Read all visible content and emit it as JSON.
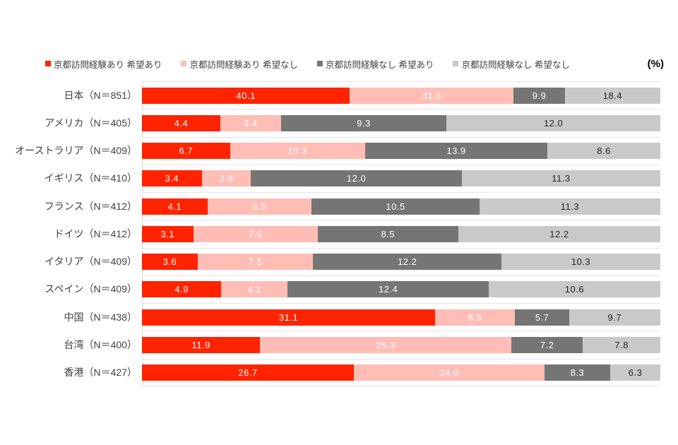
{
  "legend": {
    "unit_label": "(%)",
    "items": [
      {
        "label": "京都訪問経験あり 希望あり",
        "color": "#ff2300"
      },
      {
        "label": "京都訪問経験あり 希望なし",
        "color": "#ffbdb6"
      },
      {
        "label": "京都訪問経験なし 希望あり",
        "color": "#757575"
      },
      {
        "label": "京都訪問経験なし 希望なし",
        "color": "#c9c9c9"
      }
    ]
  },
  "chart_data": {
    "type": "bar",
    "orientation": "horizontal",
    "stacked": true,
    "normalized_per_row": true,
    "value_decimals": 1,
    "categories": [
      "日本（N＝851）",
      "アメリカ（N＝405）",
      "オーストラリア（N＝409）",
      "イギリス（N＝410）",
      "フランス（N＝412）",
      "ドイツ（N＝412）",
      "イタリア（N＝409）",
      "スペイン（N＝409）",
      "中国（N＝438）",
      "台湾（N＝400）",
      "香港（N＝427）"
    ],
    "series": [
      {
        "name": "京都訪問経験あり 希望あり",
        "color": "#ff2300",
        "text_color": "#ffffff",
        "values": [
          40.1,
          4.4,
          6.7,
          3.4,
          4.1,
          3.1,
          3.6,
          4.9,
          31.1,
          11.9,
          26.7
        ]
      },
      {
        "name": "京都訪問経験あり 希望なし",
        "color": "#ffbdb6",
        "text_color": "#ffffff",
        "values": [
          31.6,
          3.4,
          10.3,
          2.8,
          6.5,
          7.5,
          7.5,
          4.1,
          8.5,
          25.3,
          24.0
        ]
      },
      {
        "name": "京都訪問経験なし 希望あり",
        "color": "#757575",
        "text_color": "#ffffff",
        "values": [
          9.9,
          9.3,
          13.9,
          12.0,
          10.5,
          8.5,
          12.2,
          12.4,
          5.7,
          7.2,
          8.3
        ]
      },
      {
        "name": "京都訪問経験なし 希望なし",
        "color": "#c9c9c9",
        "text_color": "#262626",
        "values": [
          18.4,
          12.0,
          8.6,
          11.3,
          11.3,
          12.2,
          10.3,
          10.6,
          9.7,
          7.8,
          6.3
        ]
      }
    ]
  }
}
